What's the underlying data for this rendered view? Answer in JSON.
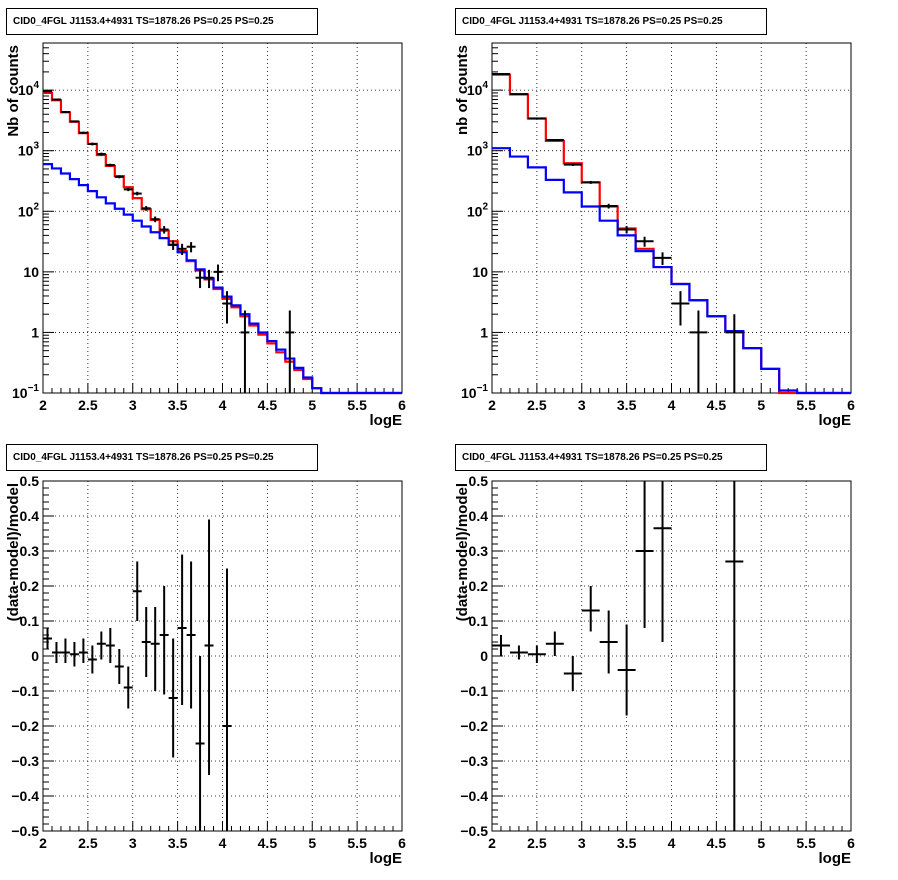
{
  "chart_data": [
    {
      "type": "step-line",
      "title": "CID0_4FGL J1153.4+4931 TS=1878.26 PS=0.25 PS=0.25",
      "xlabel": "logE",
      "ylabel": "Nb of counts",
      "xlim": [
        2,
        6
      ],
      "ylim": [
        0.1,
        60000
      ],
      "yscale": "log",
      "grid": true,
      "xticks": [
        "2",
        "2.5",
        "3",
        "3.5",
        "4",
        "4.5",
        "5",
        "5.5",
        "6"
      ],
      "yticks": [
        {
          "v": 0.1,
          "label": "10",
          "sup": "−1"
        },
        {
          "v": 1,
          "label": "1",
          "sup": ""
        },
        {
          "v": 10,
          "label": "10",
          "sup": ""
        },
        {
          "v": 100,
          "label": "10",
          "sup": "2"
        },
        {
          "v": 1000,
          "label": "10",
          "sup": "3"
        },
        {
          "v": 10000,
          "label": "10",
          "sup": "4"
        }
      ],
      "bin_edges": [
        2.0,
        2.1,
        2.2,
        2.3,
        2.4,
        2.5,
        2.6,
        2.7,
        2.8,
        2.9,
        3.0,
        3.1,
        3.2,
        3.3,
        3.4,
        3.5,
        3.6,
        3.7,
        3.8,
        3.9,
        4.0,
        4.1,
        4.2,
        4.3,
        4.4,
        4.5,
        4.6,
        4.7,
        4.8,
        4.9,
        5.0,
        5.1,
        5.2,
        5.3,
        5.4,
        5.5,
        5.6,
        5.7,
        5.8,
        5.9,
        6.0
      ],
      "series": [
        {
          "color": "#ff0000",
          "values": [
            9000,
            6800,
            4300,
            3000,
            1950,
            1300,
            850,
            560,
            380,
            250,
            165,
            108,
            72,
            48,
            32,
            22,
            15,
            10.5,
            7.5,
            5.2,
            3.6,
            2.6,
            1.85,
            1.3,
            0.92,
            0.66,
            0.47,
            0.33,
            0.24,
            0.17,
            0.12,
            0.1,
            0.1,
            0.1,
            0.1,
            0.1,
            0.1,
            0.1,
            0.1,
            0.1
          ]
        },
        {
          "color": "#0000ff",
          "values": [
            600,
            510,
            420,
            340,
            270,
            215,
            170,
            135,
            110,
            88,
            70,
            56,
            45,
            36,
            28,
            21,
            15.5,
            11,
            7.8,
            5.5,
            3.9,
            2.8,
            2.0,
            1.4,
            1.0,
            0.72,
            0.52,
            0.37,
            0.26,
            0.18,
            0.12,
            0.1,
            0.1,
            0.1,
            0.1,
            0.1,
            0.1,
            0.1,
            0.1,
            0.1
          ]
        }
      ],
      "points": [
        {
          "x": 2.05,
          "y": 9600,
          "xerr": 0.05,
          "lo": 9400,
          "hi": 9800
        },
        {
          "x": 2.15,
          "y": 7000,
          "xerr": 0.05,
          "lo": 6850,
          "hi": 7150
        },
        {
          "x": 2.25,
          "y": 4350,
          "xerr": 0.05,
          "lo": 4200,
          "hi": 4500
        },
        {
          "x": 2.35,
          "y": 3050,
          "xerr": 0.05,
          "lo": 2950,
          "hi": 3150
        },
        {
          "x": 2.45,
          "y": 1980,
          "xerr": 0.05,
          "lo": 1900,
          "hi": 2060
        },
        {
          "x": 2.55,
          "y": 1290,
          "xerr": 0.05,
          "lo": 1220,
          "hi": 1360
        },
        {
          "x": 2.65,
          "y": 880,
          "xerr": 0.05,
          "lo": 830,
          "hi": 930
        },
        {
          "x": 2.75,
          "y": 580,
          "xerr": 0.05,
          "lo": 550,
          "hi": 610
        },
        {
          "x": 2.85,
          "y": 370,
          "xerr": 0.05,
          "lo": 350,
          "hi": 390
        },
        {
          "x": 2.95,
          "y": 230,
          "xerr": 0.05,
          "lo": 215,
          "hi": 245
        },
        {
          "x": 3.05,
          "y": 196,
          "xerr": 0.05,
          "lo": 183,
          "hi": 210
        },
        {
          "x": 3.15,
          "y": 112,
          "xerr": 0.05,
          "lo": 102,
          "hi": 122
        },
        {
          "x": 3.25,
          "y": 74,
          "xerr": 0.05,
          "lo": 66,
          "hi": 82
        },
        {
          "x": 3.35,
          "y": 50,
          "xerr": 0.05,
          "lo": 43,
          "hi": 57
        },
        {
          "x": 3.45,
          "y": 28,
          "xerr": 0.05,
          "lo": 23,
          "hi": 33
        },
        {
          "x": 3.55,
          "y": 24,
          "xerr": 0.05,
          "lo": 19,
          "hi": 29
        },
        {
          "x": 3.65,
          "y": 26,
          "xerr": 0.05,
          "lo": 21,
          "hi": 31
        },
        {
          "x": 3.75,
          "y": 8,
          "xerr": 0.05,
          "lo": 5.4,
          "hi": 10.8
        },
        {
          "x": 3.85,
          "y": 8,
          "xerr": 0.05,
          "lo": 5.4,
          "hi": 10.8
        },
        {
          "x": 3.95,
          "y": 10,
          "xerr": 0.05,
          "lo": 7,
          "hi": 13.2
        },
        {
          "x": 4.05,
          "y": 3,
          "xerr": 0.05,
          "lo": 1.4,
          "hi": 4.8
        },
        {
          "x": 4.25,
          "y": 1,
          "xerr": 0.05,
          "lo": 0.1,
          "hi": 2.3
        },
        {
          "x": 4.75,
          "y": 1,
          "xerr": 0.05,
          "lo": 0.1,
          "hi": 2.3
        }
      ]
    },
    {
      "type": "step-line",
      "title": "CID0_4FGL J1153.4+4931 TS=1878.26 PS=0.25 PS=0.25",
      "xlabel": "logE",
      "ylabel": "nb of counts",
      "xlim": [
        2,
        6
      ],
      "ylim": [
        0.1,
        60000
      ],
      "yscale": "log",
      "grid": true,
      "xticks": [
        "2",
        "2.5",
        "3",
        "3.5",
        "4",
        "4.5",
        "5",
        "5.5",
        "6"
      ],
      "yticks": [
        {
          "v": 0.1,
          "label": "10",
          "sup": "−1"
        },
        {
          "v": 1,
          "label": "1",
          "sup": ""
        },
        {
          "v": 10,
          "label": "10",
          "sup": ""
        },
        {
          "v": 100,
          "label": "10",
          "sup": "2"
        },
        {
          "v": 1000,
          "label": "10",
          "sup": "3"
        },
        {
          "v": 10000,
          "label": "10",
          "sup": "4"
        }
      ],
      "bin_edges": [
        2.0,
        2.2,
        2.4,
        2.6,
        2.8,
        3.0,
        3.2,
        3.4,
        3.6,
        3.8,
        4.0,
        4.2,
        4.4,
        4.6,
        4.8,
        5.0,
        5.2,
        5.4,
        5.6,
        5.8,
        6.0
      ],
      "series": [
        {
          "color": "#ff0000",
          "values": [
            18000,
            8500,
            3400,
            1450,
            620,
            300,
            120,
            52,
            24,
            12,
            6.3,
            3.4,
            1.85,
            1.05,
            0.55,
            0.25,
            0.1,
            0.1,
            0.1,
            0.1
          ]
        },
        {
          "color": "#0000ff",
          "values": [
            1100,
            800,
            530,
            330,
            205,
            120,
            70,
            40,
            22,
            12,
            6.3,
            3.4,
            1.85,
            1.05,
            0.55,
            0.25,
            0.11,
            0.1,
            0.1,
            0.1
          ]
        }
      ],
      "points": [
        {
          "x": 2.1,
          "y": 18500,
          "xerr": 0.1,
          "lo": 18100,
          "hi": 18900
        },
        {
          "x": 2.3,
          "y": 8600,
          "xerr": 0.1,
          "lo": 8400,
          "hi": 8800
        },
        {
          "x": 2.5,
          "y": 3400,
          "xerr": 0.1,
          "lo": 3300,
          "hi": 3500
        },
        {
          "x": 2.7,
          "y": 1500,
          "xerr": 0.1,
          "lo": 1440,
          "hi": 1560
        },
        {
          "x": 2.9,
          "y": 590,
          "xerr": 0.1,
          "lo": 560,
          "hi": 620
        },
        {
          "x": 3.1,
          "y": 300,
          "xerr": 0.1,
          "lo": 283,
          "hi": 317
        },
        {
          "x": 3.3,
          "y": 122,
          "xerr": 0.1,
          "lo": 111,
          "hi": 133
        },
        {
          "x": 3.5,
          "y": 50,
          "xerr": 0.1,
          "lo": 43,
          "hi": 57
        },
        {
          "x": 3.7,
          "y": 32,
          "xerr": 0.1,
          "lo": 26,
          "hi": 38
        },
        {
          "x": 3.9,
          "y": 17,
          "xerr": 0.1,
          "lo": 13,
          "hi": 21
        },
        {
          "x": 4.1,
          "y": 3,
          "xerr": 0.1,
          "lo": 1.3,
          "hi": 4.8
        },
        {
          "x": 4.3,
          "y": 1,
          "xerr": 0.1,
          "lo": 0.1,
          "hi": 2.3
        },
        {
          "x": 4.7,
          "y": 1,
          "xerr": 0.1,
          "lo": 0.1,
          "hi": 2.0
        }
      ]
    },
    {
      "type": "scatter",
      "title": "CID0_4FGL J1153.4+4931 TS=1878.26 PS=0.25 PS=0.25",
      "xlabel": "logE",
      "ylabel": "(data-model)/model",
      "xlim": [
        2,
        6
      ],
      "ylim": [
        -0.5,
        0.5
      ],
      "yscale": "linear",
      "grid": true,
      "xticks": [
        "2",
        "2.5",
        "3",
        "3.5",
        "4",
        "4.5",
        "5",
        "5.5",
        "6"
      ],
      "yticks": [
        {
          "v": -0.5,
          "label": "−0.5",
          "sup": ""
        },
        {
          "v": -0.4,
          "label": "−0.4",
          "sup": ""
        },
        {
          "v": -0.3,
          "label": "−0.3",
          "sup": ""
        },
        {
          "v": -0.2,
          "label": "−0.2",
          "sup": ""
        },
        {
          "v": -0.1,
          "label": "−0.1",
          "sup": ""
        },
        {
          "v": 0,
          "label": "0",
          "sup": ""
        },
        {
          "v": 0.1,
          "label": "0.1",
          "sup": ""
        },
        {
          "v": 0.2,
          "label": "0.2",
          "sup": ""
        },
        {
          "v": 0.3,
          "label": "0.3",
          "sup": ""
        },
        {
          "v": 0.4,
          "label": "0.4",
          "sup": ""
        },
        {
          "v": 0.5,
          "label": "0.5",
          "sup": ""
        }
      ],
      "points": [
        {
          "x": 2.05,
          "y": 0.05,
          "xerr": 0.05,
          "lo": 0.02,
          "hi": 0.08
        },
        {
          "x": 2.15,
          "y": 0.01,
          "xerr": 0.05,
          "lo": -0.02,
          "hi": 0.04
        },
        {
          "x": 2.25,
          "y": 0.01,
          "xerr": 0.05,
          "lo": -0.02,
          "hi": 0.05
        },
        {
          "x": 2.35,
          "y": 0.005,
          "xerr": 0.05,
          "lo": -0.03,
          "hi": 0.04
        },
        {
          "x": 2.45,
          "y": 0.01,
          "xerr": 0.05,
          "lo": -0.02,
          "hi": 0.05
        },
        {
          "x": 2.55,
          "y": -0.01,
          "xerr": 0.05,
          "lo": -0.05,
          "hi": 0.03
        },
        {
          "x": 2.65,
          "y": 0.035,
          "xerr": 0.05,
          "lo": -0.01,
          "hi": 0.07
        },
        {
          "x": 2.75,
          "y": 0.03,
          "xerr": 0.05,
          "lo": -0.02,
          "hi": 0.08
        },
        {
          "x": 2.85,
          "y": -0.03,
          "xerr": 0.05,
          "lo": -0.08,
          "hi": 0.02
        },
        {
          "x": 2.95,
          "y": -0.09,
          "xerr": 0.05,
          "lo": -0.15,
          "hi": -0.03
        },
        {
          "x": 3.05,
          "y": 0.185,
          "xerr": 0.05,
          "lo": 0.1,
          "hi": 0.27
        },
        {
          "x": 3.15,
          "y": 0.04,
          "xerr": 0.05,
          "lo": -0.06,
          "hi": 0.14
        },
        {
          "x": 3.25,
          "y": 0.035,
          "xerr": 0.05,
          "lo": -0.1,
          "hi": 0.14
        },
        {
          "x": 3.35,
          "y": 0.06,
          "xerr": 0.05,
          "lo": -0.11,
          "hi": 0.2
        },
        {
          "x": 3.45,
          "y": -0.12,
          "xerr": 0.05,
          "lo": -0.29,
          "hi": 0.05
        },
        {
          "x": 3.55,
          "y": 0.08,
          "xerr": 0.05,
          "lo": -0.14,
          "hi": 0.29
        },
        {
          "x": 3.65,
          "y": 0.06,
          "xerr": 0.05,
          "lo": -0.15,
          "hi": 0.27
        },
        {
          "x": 3.75,
          "y": -0.25,
          "xerr": 0.05,
          "lo": -0.5,
          "hi": 0.0
        },
        {
          "x": 3.85,
          "y": 0.03,
          "xerr": 0.05,
          "lo": -0.34,
          "hi": 0.39
        },
        {
          "x": 4.05,
          "y": -0.2,
          "xerr": 0.05,
          "lo": -0.5,
          "hi": 0.25
        }
      ]
    },
    {
      "type": "scatter",
      "title": "CID0_4FGL J1153.4+4931 TS=1878.26 PS=0.25 PS=0.25",
      "xlabel": "logE",
      "ylabel": "(data-model)/model",
      "xlim": [
        2,
        6
      ],
      "ylim": [
        -0.5,
        0.5
      ],
      "yscale": "linear",
      "grid": true,
      "xticks": [
        "2",
        "2.5",
        "3",
        "3.5",
        "4",
        "4.5",
        "5",
        "5.5",
        "6"
      ],
      "yticks": [
        {
          "v": -0.5,
          "label": "−0.5",
          "sup": ""
        },
        {
          "v": -0.4,
          "label": "−0.4",
          "sup": ""
        },
        {
          "v": -0.3,
          "label": "−0.3",
          "sup": ""
        },
        {
          "v": -0.2,
          "label": "−0.2",
          "sup": ""
        },
        {
          "v": -0.1,
          "label": "−0.1",
          "sup": ""
        },
        {
          "v": 0,
          "label": "0",
          "sup": ""
        },
        {
          "v": 0.1,
          "label": "0.1",
          "sup": ""
        },
        {
          "v": 0.2,
          "label": "0.2",
          "sup": ""
        },
        {
          "v": 0.3,
          "label": "0.3",
          "sup": ""
        },
        {
          "v": 0.4,
          "label": "0.4",
          "sup": ""
        },
        {
          "v": 0.5,
          "label": "0.5",
          "sup": ""
        }
      ],
      "points": [
        {
          "x": 2.1,
          "y": 0.03,
          "xerr": 0.1,
          "lo": 0.0,
          "hi": 0.06
        },
        {
          "x": 2.3,
          "y": 0.01,
          "xerr": 0.1,
          "lo": -0.01,
          "hi": 0.03
        },
        {
          "x": 2.5,
          "y": 0.005,
          "xerr": 0.1,
          "lo": -0.02,
          "hi": 0.03
        },
        {
          "x": 2.7,
          "y": 0.035,
          "xerr": 0.1,
          "lo": 0.0,
          "hi": 0.07
        },
        {
          "x": 2.9,
          "y": -0.05,
          "xerr": 0.1,
          "lo": -0.1,
          "hi": 0.0
        },
        {
          "x": 3.1,
          "y": 0.13,
          "xerr": 0.1,
          "lo": 0.07,
          "hi": 0.2
        },
        {
          "x": 3.3,
          "y": 0.04,
          "xerr": 0.1,
          "lo": -0.05,
          "hi": 0.13
        },
        {
          "x": 3.5,
          "y": -0.04,
          "xerr": 0.1,
          "lo": -0.17,
          "hi": 0.09
        },
        {
          "x": 3.7,
          "y": 0.3,
          "xerr": 0.1,
          "lo": 0.08,
          "hi": 0.5
        },
        {
          "x": 3.9,
          "y": 0.365,
          "xerr": 0.1,
          "lo": 0.04,
          "hi": 0.5
        },
        {
          "x": 4.7,
          "y": 0.27,
          "xerr": 0.1,
          "lo": -0.5,
          "hi": 0.5
        }
      ]
    }
  ]
}
